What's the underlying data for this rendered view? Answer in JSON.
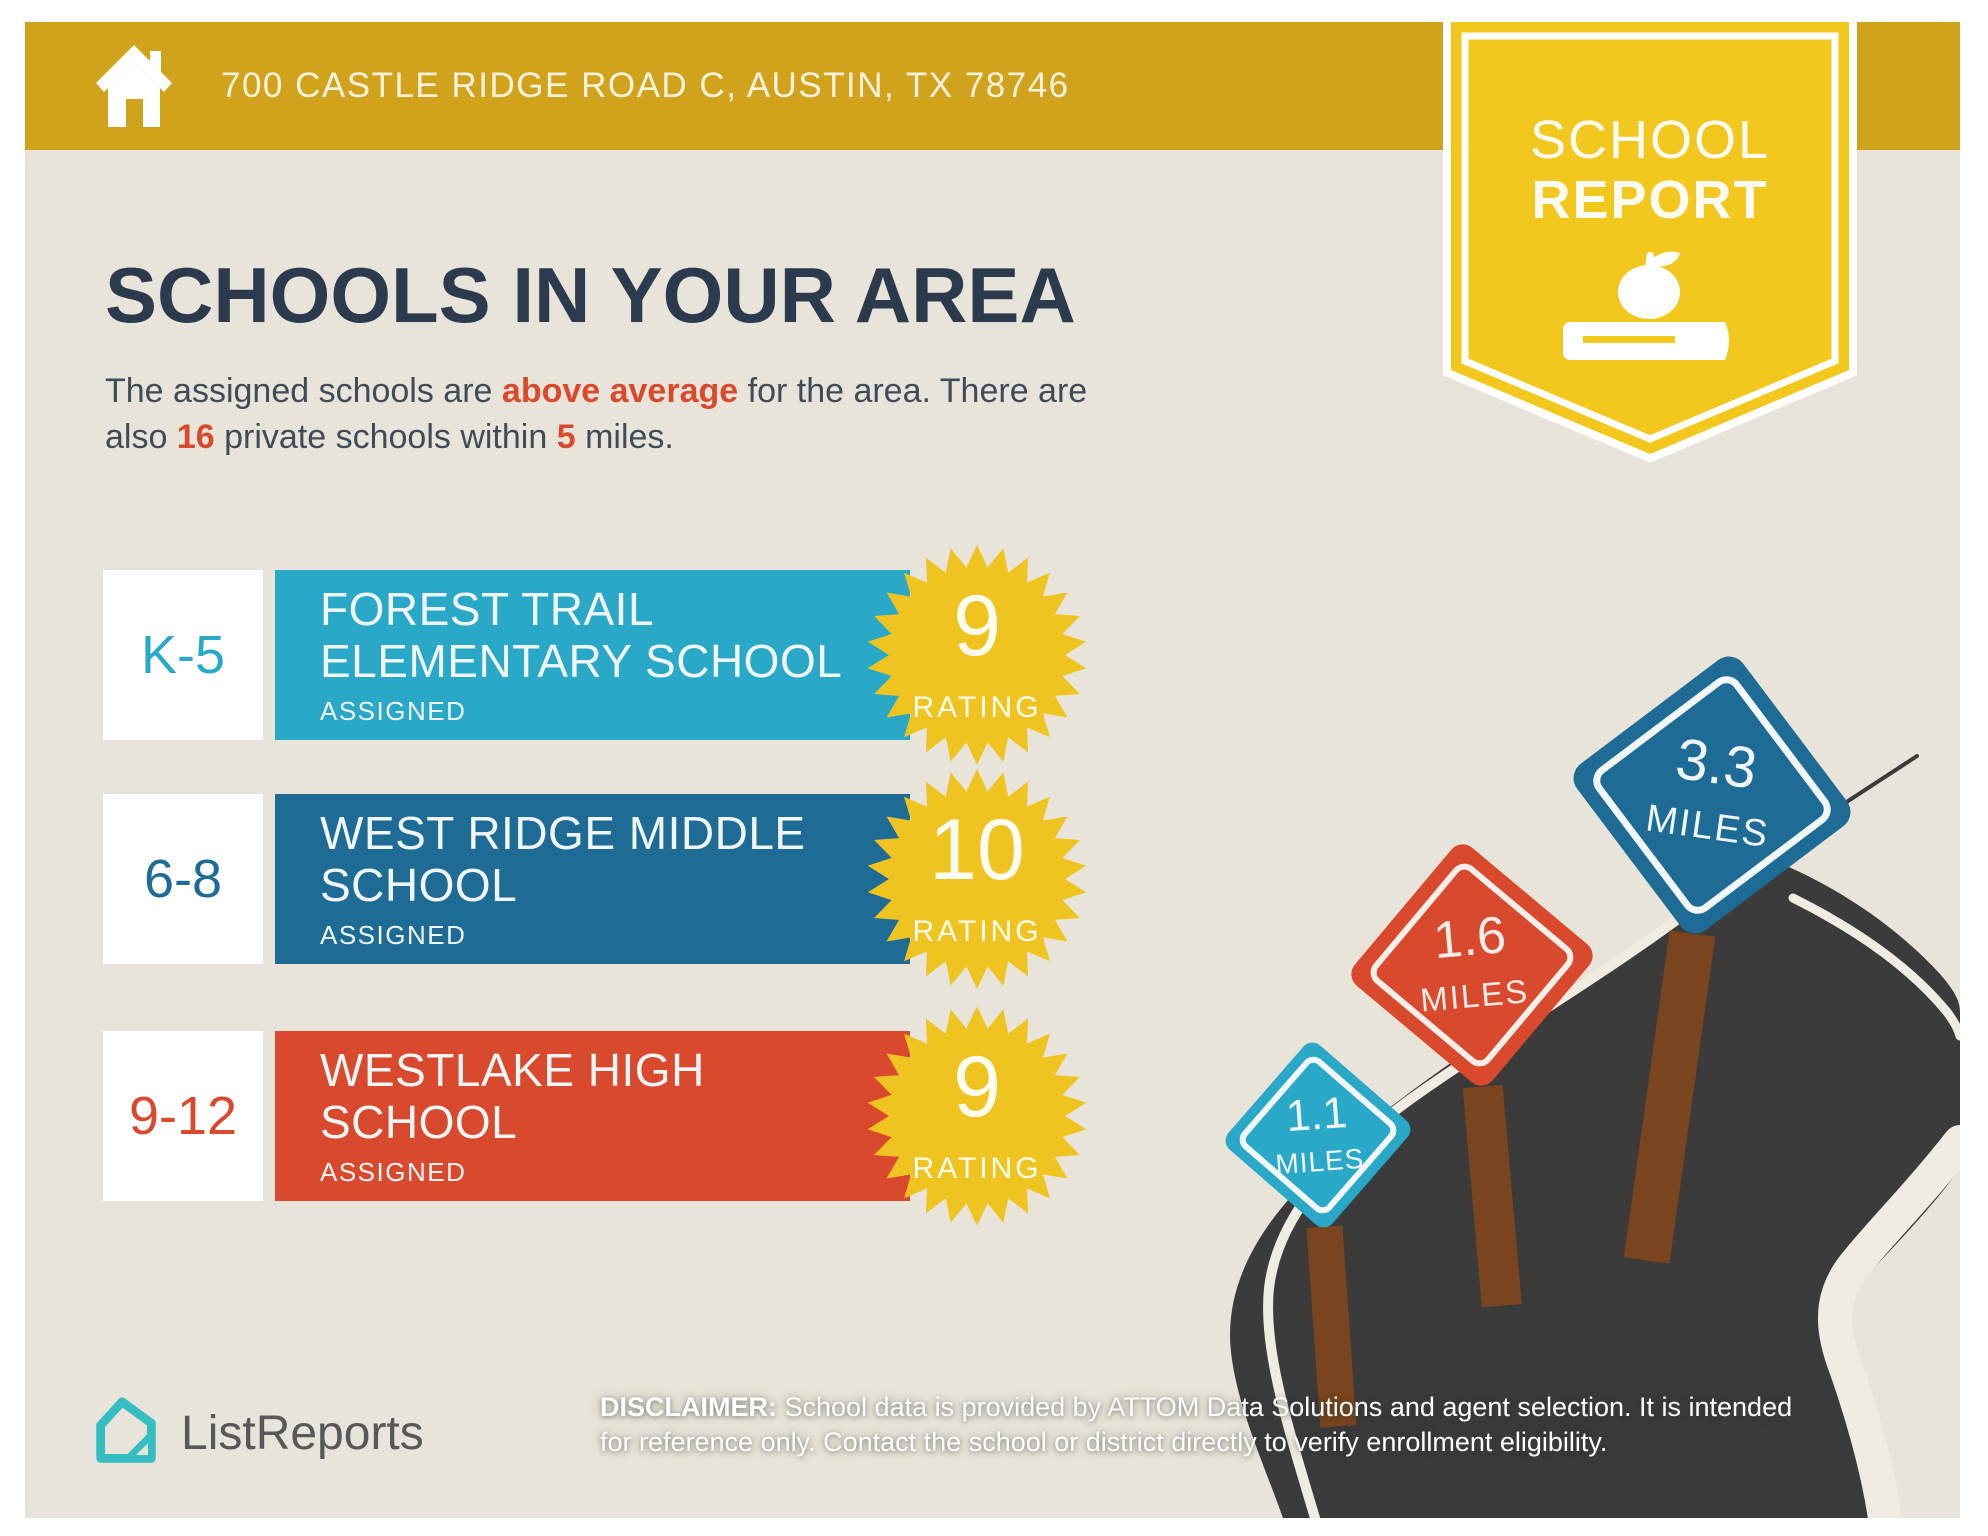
{
  "colors": {
    "banner_gold": "#D1A21C",
    "badge_yellow": "#F2C71E",
    "star_yellow": "#F0C420",
    "background": "#E9E4D9",
    "teal": "#2AA8C7",
    "dark_blue": "#1E6B95",
    "red": "#D9492D",
    "navy": "#2B3B4D",
    "road": "#3B3B3C",
    "road_line": "#F0ECE1",
    "post_brown": "#7A451E",
    "logo_teal": "#35BEC1",
    "white": "#FFFFFF"
  },
  "header": {
    "address": "700 CASTLE RIDGE ROAD C, AUSTIN, TX 78746"
  },
  "badge": {
    "line1": "SCHOOL",
    "line2": "REPORT"
  },
  "title": "SCHOOLS IN YOUR AREA",
  "subtitle": {
    "seg1": "The assigned schools are ",
    "seg2": "above average",
    "seg3": " for the area. There are",
    "seg4": "also ",
    "seg5": "16",
    "seg6": " private schools within ",
    "seg7": "5",
    "seg8": " miles."
  },
  "schools": [
    {
      "grade": "K-5",
      "name_line1": "FOREST TRAIL",
      "name_line2": "ELEMENTARY SCHOOL",
      "status": "ASSIGNED",
      "rating": "9",
      "rating_label": "RATING",
      "color": "#2AA8C7"
    },
    {
      "grade": "6-8",
      "name_line1": "WEST RIDGE MIDDLE",
      "name_line2": "SCHOOL",
      "status": "ASSIGNED",
      "rating": "10",
      "rating_label": "RATING",
      "color": "#1E6B95"
    },
    {
      "grade": "9-12",
      "name_line1": "WESTLAKE HIGH",
      "name_line2": "SCHOOL",
      "status": "ASSIGNED",
      "rating": "9",
      "rating_label": "RATING",
      "color": "#D9492D"
    }
  ],
  "signs": [
    {
      "value": "1.1",
      "label": "MILES",
      "color": "#2AA8C7"
    },
    {
      "value": "1.6",
      "label": "MILES",
      "color": "#D9492D"
    },
    {
      "value": "3.3",
      "label": "MILES",
      "color": "#1E6B95"
    }
  ],
  "footer": {
    "logo_text": "ListReports",
    "disclaimer_label": "DISCLAIMER:",
    "disclaimer_line1_rest": " School data is provided by ATTOM Data Solutions and agent selection. It is intended",
    "disclaimer_line2": "for reference only. Contact the school or district directly to verify enrollment eligibility."
  }
}
